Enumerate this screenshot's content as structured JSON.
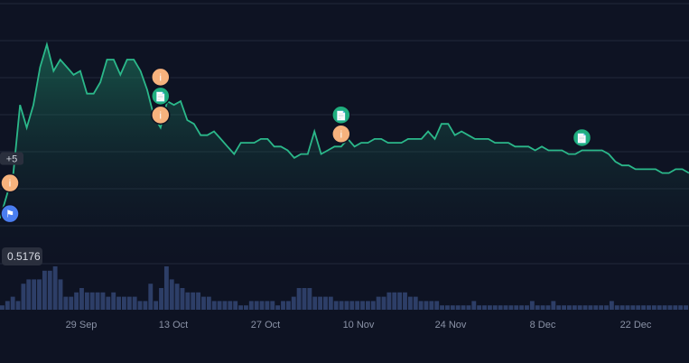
{
  "chart_data": {
    "type": "area",
    "x_tick_labels": [
      "29 Sep",
      "13 Oct",
      "27 Oct",
      "10 Nov",
      "24 Nov",
      "8 Dec",
      "22 Dec"
    ],
    "price_start_label": "0.5176",
    "y_gridlines": 7,
    "colors": {
      "background": "#0e1323",
      "line": "#2bb88a",
      "volume": "#2d3e67",
      "info_marker": "#f7b27d",
      "doc_marker": "#1fae7e",
      "flag_marker": "#4a7ef0"
    },
    "series": [
      {
        "values": [
          0.52,
          0.58,
          0.64,
          0.82,
          0.76,
          0.82,
          0.92,
          0.98,
          0.91,
          0.94,
          0.92,
          0.9,
          0.91,
          0.85,
          0.85,
          0.88,
          0.94,
          0.94,
          0.9,
          0.94,
          0.94,
          0.91,
          0.86,
          0.79,
          0.76,
          0.83,
          0.82,
          0.83,
          0.78,
          0.77,
          0.74,
          0.74,
          0.75,
          0.73,
          0.71,
          0.69,
          0.72,
          0.72,
          0.72,
          0.73,
          0.73,
          0.71,
          0.71,
          0.7,
          0.68,
          0.69,
          0.69,
          0.75,
          0.69,
          0.7,
          0.71,
          0.71,
          0.73,
          0.71,
          0.72,
          0.72,
          0.73,
          0.73,
          0.72,
          0.72,
          0.72,
          0.73,
          0.73,
          0.73,
          0.75,
          0.73,
          0.77,
          0.77,
          0.74,
          0.75,
          0.74,
          0.73,
          0.73,
          0.73,
          0.72,
          0.72,
          0.72,
          0.71,
          0.71,
          0.71,
          0.7,
          0.71,
          0.7,
          0.7,
          0.7,
          0.69,
          0.69,
          0.7,
          0.7,
          0.7,
          0.7,
          0.69,
          0.67,
          0.66,
          0.66,
          0.65,
          0.65,
          0.65,
          0.65,
          0.64,
          0.64,
          0.65,
          0.65,
          0.64
        ]
      }
    ],
    "volume": [
      1,
      2,
      3,
      2,
      6,
      7,
      7,
      7,
      9,
      9,
      10,
      7,
      3,
      3,
      4,
      5,
      4,
      4,
      4,
      4,
      3,
      4,
      3,
      3,
      3,
      3,
      2,
      2,
      6,
      2,
      5,
      10,
      7,
      6,
      5,
      4,
      4,
      4,
      3,
      3,
      2,
      2,
      2,
      2,
      2,
      1,
      1,
      2,
      2,
      2,
      2,
      2,
      1,
      2,
      2,
      3,
      5,
      5,
      5,
      3,
      3,
      3,
      3,
      2,
      2,
      2,
      2,
      2,
      2,
      2,
      2,
      3,
      3,
      4,
      4,
      4,
      4,
      3,
      3,
      2,
      2,
      2,
      2,
      1,
      1,
      1,
      1,
      1,
      1,
      2,
      1,
      1,
      1,
      1,
      1,
      1,
      1,
      1,
      1,
      1,
      2,
      1,
      1,
      1,
      2,
      1,
      1,
      1,
      1,
      1,
      1,
      1,
      1,
      1,
      1,
      2,
      1,
      1,
      1,
      1,
      1,
      1,
      1,
      1,
      1,
      1,
      1,
      1,
      1,
      1
    ],
    "markers": [
      {
        "type": "info",
        "glyph": "i",
        "index": 1
      },
      {
        "type": "flag",
        "glyph": "⚑",
        "index": 1
      },
      {
        "type": "count",
        "text": "+5",
        "index": 1
      },
      {
        "type": "info",
        "glyph": "i",
        "index": 24
      },
      {
        "type": "doc",
        "glyph": "📄",
        "index": 24
      },
      {
        "type": "info",
        "glyph": "i",
        "index": 24
      },
      {
        "type": "info",
        "glyph": "i",
        "index": 51
      },
      {
        "type": "doc",
        "glyph": "📄",
        "index": 51
      },
      {
        "type": "doc",
        "glyph": "📄",
        "index": 87
      }
    ]
  }
}
